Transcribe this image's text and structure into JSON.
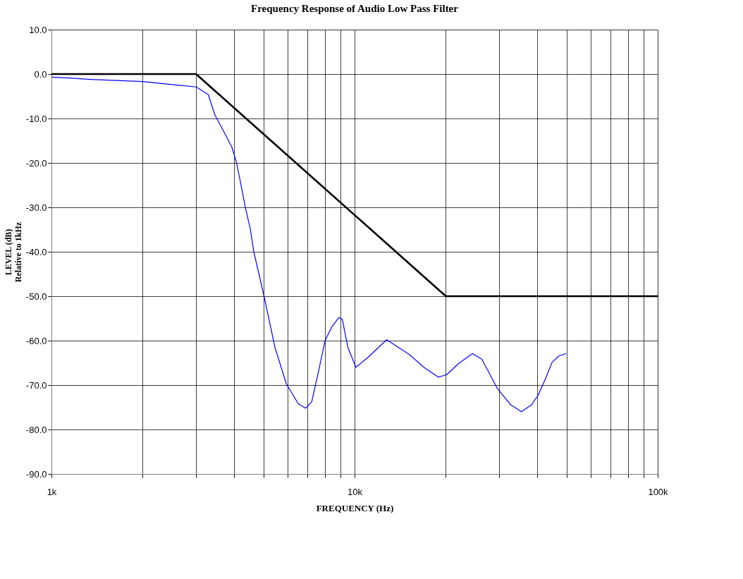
{
  "chart_data": {
    "type": "line",
    "title": "Frequency Response of Audio Low Pass Filter",
    "xlabel": "FREQUENCY (Hz)",
    "ylabel": "LEVEL (dB)\nRelative to 1kHz",
    "log": "x",
    "grid": true,
    "legend": false,
    "marker": "none",
    "line_style": "solid",
    "xlim": [
      1000,
      100000
    ],
    "ylim": [
      -90,
      10
    ],
    "xticks": [
      {
        "value": 1000,
        "label": "1k"
      },
      {
        "value": 2000,
        "label": null
      },
      {
        "value": 3000,
        "label": null
      },
      {
        "value": 4000,
        "label": null
      },
      {
        "value": 5000,
        "label": null
      },
      {
        "value": 6000,
        "label": null
      },
      {
        "value": 7000,
        "label": null
      },
      {
        "value": 8000,
        "label": null
      },
      {
        "value": 9000,
        "label": null
      },
      {
        "value": 10000,
        "label": "10k"
      },
      {
        "value": 20000,
        "label": null
      },
      {
        "value": 30000,
        "label": null
      },
      {
        "value": 40000,
        "label": null
      },
      {
        "value": 50000,
        "label": null
      },
      {
        "value": 60000,
        "label": null
      },
      {
        "value": 70000,
        "label": null
      },
      {
        "value": 80000,
        "label": null
      },
      {
        "value": 90000,
        "label": null
      },
      {
        "value": 100000,
        "label": "100k"
      }
    ],
    "yticks": [
      {
        "value": 10,
        "label": "10.0"
      },
      {
        "value": 0,
        "label": "0.0"
      },
      {
        "value": -10,
        "label": "-10.0"
      },
      {
        "value": -20,
        "label": "-20.0"
      },
      {
        "value": -30,
        "label": "-30.0"
      },
      {
        "value": -40,
        "label": "-40.0"
      },
      {
        "value": -50,
        "label": "-50.0"
      },
      {
        "value": -60,
        "label": "-60.0"
      },
      {
        "value": -70,
        "label": "-70.0"
      },
      {
        "value": -80,
        "label": "-80.0"
      },
      {
        "value": -90,
        "label": "-90.0"
      }
    ],
    "series": [
      {
        "color": "#0000ff",
        "x": [
          1000,
          1140,
          1350,
          2000,
          3000,
          3290,
          3460,
          3700,
          3940,
          4080,
          4210,
          4370,
          4530,
          4650,
          5020,
          5460,
          5960,
          6520,
          6890,
          7220,
          7610,
          7990,
          8430,
          8880,
          9110,
          9500,
          10100,
          11100,
          12760,
          15140,
          17070,
          18900,
          20100,
          22000,
          24500,
          26300,
          29600,
          32800,
          35500,
          38300,
          40300,
          42500,
          44800,
          47100,
          49900
        ],
        "values": [
          -0.7,
          -0.9,
          -1.2,
          -1.7,
          -2.9,
          -4.6,
          -9.2,
          -12.9,
          -16.5,
          -20,
          -24.6,
          -30.3,
          -34.9,
          -40,
          -49.8,
          -61.5,
          -69.8,
          -74.2,
          -75.2,
          -73.8,
          -66.8,
          -60,
          -56.8,
          -54.8,
          -55.2,
          -61.5,
          -66,
          -63.7,
          -59.8,
          -63.1,
          -66.2,
          -68.2,
          -67.7,
          -65.2,
          -62.9,
          -64.2,
          -70.8,
          -74.5,
          -76,
          -74.5,
          -72.3,
          -68.8,
          -64.9,
          -63.5,
          -62.9
        ]
      },
      {
        "color": "#000000",
        "x": [
          1000,
          3000,
          20000,
          100000
        ],
        "values": [
          0,
          0,
          -50,
          -50
        ]
      }
    ]
  }
}
